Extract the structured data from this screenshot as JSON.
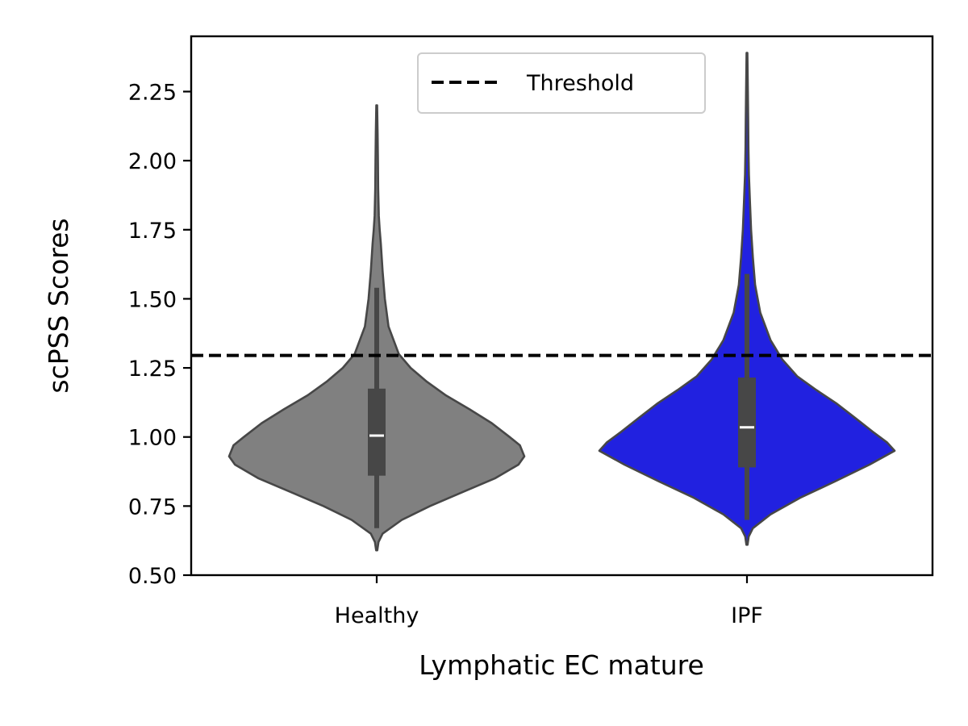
{
  "chart_data": {
    "type": "violin",
    "title": "",
    "xlabel": "Lymphatic EC mature",
    "ylabel": "scPSS Scores",
    "ylim": [
      0.5,
      2.45
    ],
    "yticks": [
      0.5,
      0.75,
      1.0,
      1.25,
      1.5,
      1.75,
      2.0,
      2.25
    ],
    "ytick_labels": [
      "0.50",
      "0.75",
      "1.00",
      "1.25",
      "1.50",
      "1.75",
      "2.00",
      "2.25"
    ],
    "threshold": 1.295,
    "legend": {
      "placement": "top-center",
      "entries": [
        "Threshold"
      ]
    },
    "grid": false,
    "groups": [
      {
        "label": "Healthy",
        "color": "#808080",
        "min": 0.59,
        "max": 2.2,
        "whisker_low": 0.67,
        "whisker_high": 1.54,
        "q1": 0.86,
        "median": 1.005,
        "q3": 1.175,
        "density": [
          [
            0.59,
            0.004
          ],
          [
            0.62,
            0.012
          ],
          [
            0.65,
            0.04
          ],
          [
            0.7,
            0.17
          ],
          [
            0.75,
            0.36
          ],
          [
            0.8,
            0.58
          ],
          [
            0.85,
            0.8
          ],
          [
            0.9,
            0.96
          ],
          [
            0.93,
            1.0
          ],
          [
            0.97,
            0.97
          ],
          [
            1.0,
            0.9
          ],
          [
            1.05,
            0.78
          ],
          [
            1.1,
            0.63
          ],
          [
            1.15,
            0.47
          ],
          [
            1.2,
            0.34
          ],
          [
            1.25,
            0.23
          ],
          [
            1.3,
            0.15
          ],
          [
            1.4,
            0.08
          ],
          [
            1.5,
            0.055
          ],
          [
            1.6,
            0.04
          ],
          [
            1.7,
            0.028
          ],
          [
            1.75,
            0.02
          ],
          [
            1.8,
            0.014
          ],
          [
            1.9,
            0.01
          ],
          [
            2.0,
            0.008
          ],
          [
            2.1,
            0.006
          ],
          [
            2.2,
            0.003
          ]
        ]
      },
      {
        "label": "IPF",
        "color": "#2121e0",
        "min": 0.61,
        "max": 2.39,
        "whisker_low": 0.7,
        "whisker_high": 1.59,
        "q1": 0.89,
        "median": 1.035,
        "q3": 1.215,
        "density": [
          [
            0.61,
            0.004
          ],
          [
            0.64,
            0.012
          ],
          [
            0.67,
            0.04
          ],
          [
            0.72,
            0.16
          ],
          [
            0.78,
            0.36
          ],
          [
            0.84,
            0.6
          ],
          [
            0.9,
            0.83
          ],
          [
            0.95,
            1.0
          ],
          [
            0.98,
            0.95
          ],
          [
            1.02,
            0.85
          ],
          [
            1.07,
            0.73
          ],
          [
            1.12,
            0.61
          ],
          [
            1.17,
            0.47
          ],
          [
            1.22,
            0.34
          ],
          [
            1.28,
            0.24
          ],
          [
            1.35,
            0.16
          ],
          [
            1.45,
            0.09
          ],
          [
            1.55,
            0.055
          ],
          [
            1.65,
            0.04
          ],
          [
            1.75,
            0.028
          ],
          [
            1.85,
            0.02
          ],
          [
            1.95,
            0.013
          ],
          [
            2.05,
            0.01
          ],
          [
            2.15,
            0.008
          ],
          [
            2.25,
            0.006
          ],
          [
            2.39,
            0.003
          ]
        ]
      }
    ]
  }
}
